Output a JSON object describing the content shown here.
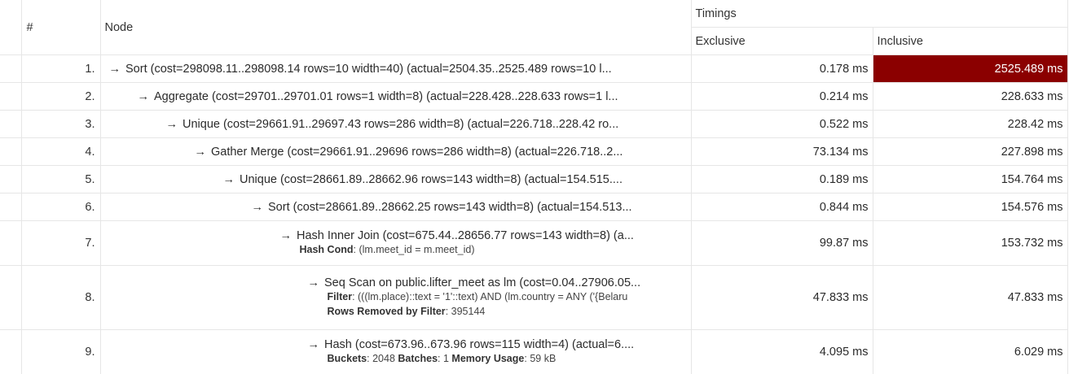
{
  "headers": {
    "num": "#",
    "node": "Node",
    "timings": "Timings",
    "exclusive": "Exclusive",
    "inclusive": "Inclusive"
  },
  "arrow": "→",
  "hot_color": "#8b0000",
  "rows": [
    {
      "num": "1.",
      "text": "Sort (cost=298098.11..298098.14 rows=10 width=40) (actual=2504.35..2525.489 rows=10 l...",
      "exclusive": "0.178 ms",
      "inclusive": "2525.489 ms"
    },
    {
      "num": "2.",
      "text": "Aggregate (cost=29701..29701.01 rows=1 width=8) (actual=228.428..228.633 rows=1 l...",
      "exclusive": "0.214 ms",
      "inclusive": "228.633 ms"
    },
    {
      "num": "3.",
      "text": "Unique (cost=29661.91..29697.43 rows=286 width=8) (actual=226.718..228.42 ro...",
      "exclusive": "0.522 ms",
      "inclusive": "228.42 ms"
    },
    {
      "num": "4.",
      "text": "Gather Merge (cost=29661.91..29696 rows=286 width=8) (actual=226.718..2...",
      "exclusive": "73.134 ms",
      "inclusive": "227.898 ms"
    },
    {
      "num": "5.",
      "text": "Unique (cost=28661.89..28662.96 rows=143 width=8) (actual=154.515....",
      "exclusive": "0.189 ms",
      "inclusive": "154.764 ms"
    },
    {
      "num": "6.",
      "text": "Sort (cost=28661.89..28662.25 rows=143 width=8) (actual=154.513...",
      "exclusive": "0.844 ms",
      "inclusive": "154.576 ms"
    },
    {
      "num": "7.",
      "text": "Hash Inner Join (cost=675.44..28656.77 rows=143 width=8) (a...",
      "exclusive": "99.87 ms",
      "inclusive": "153.732 ms",
      "d1_k": "Hash Cond",
      "d1_v": " (lm.meet_id = m.meet_id)"
    },
    {
      "num": "8.",
      "text": "Seq Scan on public.lifter_meet as lm (cost=0.04..27906.05...",
      "exclusive": "47.833 ms",
      "inclusive": "47.833 ms",
      "d1_k": "Filter",
      "d1_v": " (((lm.place)::text = '1'::text) AND (lm.country = ANY ('{Belaru",
      "d2_k": "Rows Removed by Filter",
      "d2_v": " 395144"
    },
    {
      "num": "9.",
      "text": "Hash (cost=673.96..673.96 rows=115 width=4) (actual=6....",
      "exclusive": "4.095 ms",
      "inclusive": "6.029 ms",
      "d1_k": "Buckets",
      "d1_v": " 2048 ",
      "d1_k2": "Batches",
      "d1_v2": " 1 ",
      "d1_k3": "Memory Usage",
      "d1_v3": " 59 kB"
    }
  ]
}
